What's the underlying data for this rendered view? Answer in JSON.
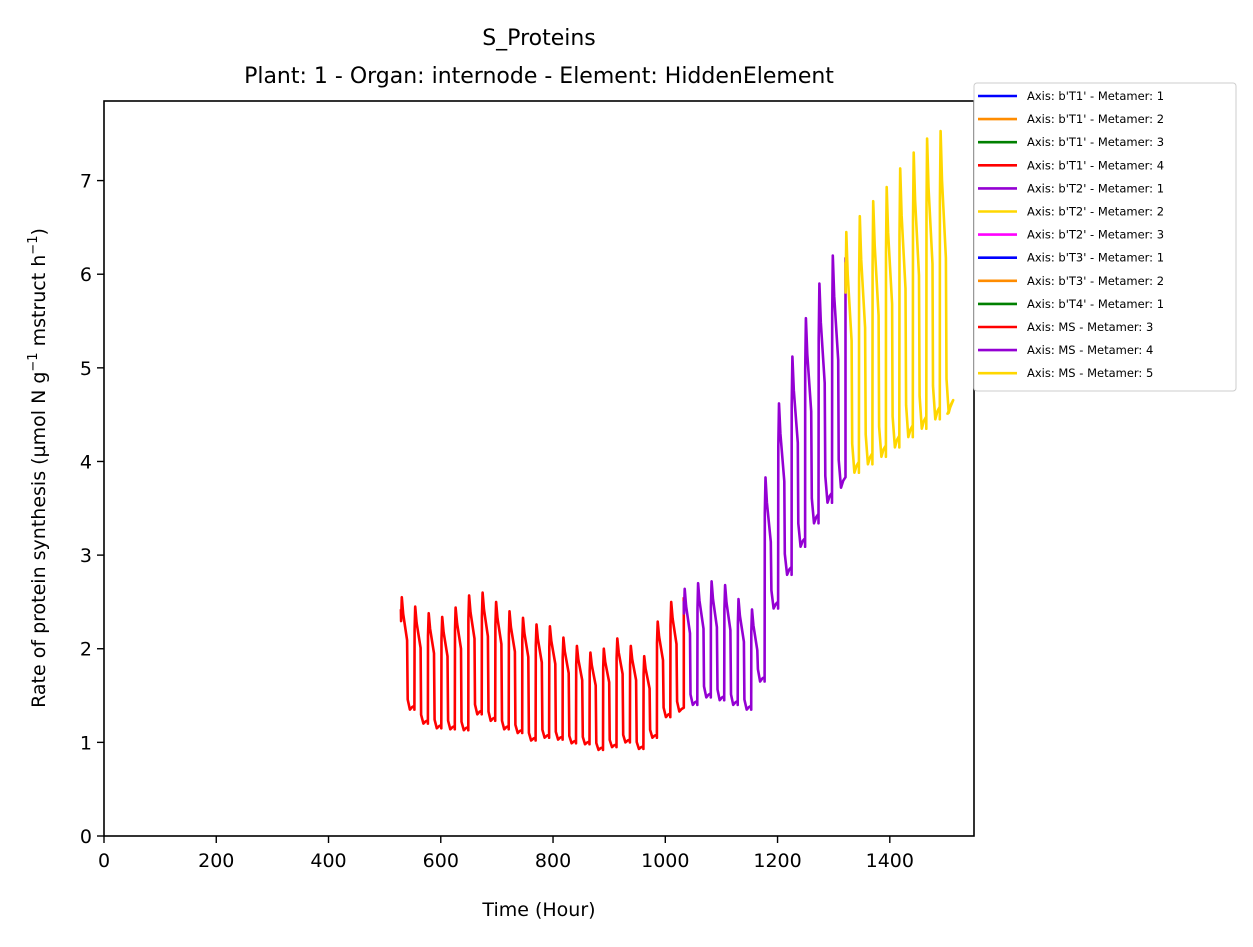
{
  "chart_data": {
    "type": "line",
    "title": "S_Proteins",
    "subtitle": "Plant: 1 - Organ: internode - Element: HiddenElement",
    "xlabel": "Time (Hour)",
    "ylabel_main": "Rate of protein synthesis (µmol N g",
    "ylabel_sup1": "−1",
    "ylabel_mid": " mstruct h",
    "ylabel_sup2": "−1",
    "ylabel_end": ")",
    "xlim": [
      0,
      1550
    ],
    "ylim": [
      0,
      7.85
    ],
    "xticks": [
      0,
      200,
      400,
      600,
      800,
      1000,
      1200,
      1400
    ],
    "yticks": [
      0,
      1,
      2,
      3,
      4,
      5,
      6,
      7
    ],
    "grid": false,
    "legend_position": "outside-top-right",
    "legend": [
      {
        "label": "Axis: b'T1' - Metamer: 1",
        "color": "#0000ff"
      },
      {
        "label": "Axis: b'T1' - Metamer: 2",
        "color": "#ff8c00"
      },
      {
        "label": "Axis: b'T1' - Metamer: 3",
        "color": "#008000"
      },
      {
        "label": "Axis: b'T1' - Metamer: 4",
        "color": "#ff0000"
      },
      {
        "label": "Axis: b'T2' - Metamer: 1",
        "color": "#9400d3"
      },
      {
        "label": "Axis: b'T2' - Metamer: 2",
        "color": "#ffd700"
      },
      {
        "label": "Axis: b'T2' - Metamer: 3",
        "color": "#ff00ff"
      },
      {
        "label": "Axis: b'T3' - Metamer: 1",
        "color": "#0000ff"
      },
      {
        "label": "Axis: b'T3' - Metamer: 2",
        "color": "#ff8c00"
      },
      {
        "label": "Axis: b'T4' - Metamer: 1",
        "color": "#008000"
      },
      {
        "label": "Axis: MS - Metamer: 3",
        "color": "#ff0000"
      },
      {
        "label": "Axis: MS - Metamer: 4",
        "color": "#9400d3"
      },
      {
        "label": "Axis: MS - Metamer: 5",
        "color": "#ffd700"
      }
    ],
    "series": [
      {
        "name": "Axis: MS - Metamer: 3",
        "color": "#ff0000",
        "cycles": [
          {
            "start": 529,
            "peak": 2.55,
            "trough": 1.35
          },
          {
            "start": 553,
            "peak": 2.45,
            "trough": 1.2
          },
          {
            "start": 577,
            "peak": 2.38,
            "trough": 1.15
          },
          {
            "start": 601,
            "peak": 2.34,
            "trough": 1.14
          },
          {
            "start": 625,
            "peak": 2.44,
            "trough": 1.13
          },
          {
            "start": 649,
            "peak": 2.57,
            "trough": 1.3
          },
          {
            "start": 673,
            "peak": 2.6,
            "trough": 1.23
          },
          {
            "start": 697,
            "peak": 2.5,
            "trough": 1.14
          },
          {
            "start": 721,
            "peak": 2.4,
            "trough": 1.1
          },
          {
            "start": 745,
            "peak": 2.33,
            "trough": 1.02
          },
          {
            "start": 769,
            "peak": 2.26,
            "trough": 1.05
          },
          {
            "start": 793,
            "peak": 2.24,
            "trough": 1.03
          },
          {
            "start": 817,
            "peak": 2.12,
            "trough": 0.99
          },
          {
            "start": 841,
            "peak": 2.03,
            "trough": 0.98
          },
          {
            "start": 865,
            "peak": 1.96,
            "trough": 0.92
          },
          {
            "start": 889,
            "peak": 2.0,
            "trough": 0.95
          },
          {
            "start": 913,
            "peak": 2.11,
            "trough": 1.0
          },
          {
            "start": 937,
            "peak": 2.03,
            "trough": 0.93
          },
          {
            "start": 961,
            "peak": 1.92,
            "trough": 1.05
          },
          {
            "start": 985,
            "peak": 2.29,
            "trough": 1.27
          },
          {
            "start": 1009,
            "peak": 2.5,
            "trough": 1.33
          }
        ],
        "end": [
          1033,
          2.55
        ]
      },
      {
        "name": "Axis: MS - Metamer: 4",
        "color": "#9400d3",
        "cycles": [
          {
            "start": 1033,
            "peak": 2.64,
            "trough": 1.4
          },
          {
            "start": 1057,
            "peak": 2.7,
            "trough": 1.48
          },
          {
            "start": 1081,
            "peak": 2.72,
            "trough": 1.45
          },
          {
            "start": 1105,
            "peak": 2.68,
            "trough": 1.4
          },
          {
            "start": 1129,
            "peak": 2.53,
            "trough": 1.35
          },
          {
            "start": 1153,
            "peak": 2.42,
            "trough": 1.65
          },
          {
            "start": 1177,
            "peak": 3.83,
            "trough": 2.43
          },
          {
            "start": 1201,
            "peak": 4.62,
            "trough": 2.79
          },
          {
            "start": 1225,
            "peak": 5.12,
            "trough": 3.09
          },
          {
            "start": 1249,
            "peak": 5.53,
            "trough": 3.34
          },
          {
            "start": 1273,
            "peak": 5.9,
            "trough": 3.56
          },
          {
            "start": 1297,
            "peak": 6.2,
            "trough": 3.72
          }
        ],
        "end": [
          1321,
          6.18
        ]
      },
      {
        "name": "Axis: MS - Metamer: 5",
        "color": "#ffd700",
        "cycles": [
          {
            "start": 1321,
            "peak": 6.45,
            "trough": 3.88
          },
          {
            "start": 1345,
            "peak": 6.62,
            "trough": 3.97
          },
          {
            "start": 1369,
            "peak": 6.78,
            "trough": 4.05
          },
          {
            "start": 1393,
            "peak": 6.93,
            "trough": 4.15
          },
          {
            "start": 1417,
            "peak": 7.13,
            "trough": 4.26
          },
          {
            "start": 1441,
            "peak": 7.3,
            "trough": 4.35
          },
          {
            "start": 1465,
            "peak": 7.45,
            "trough": 4.45
          },
          {
            "start": 1489,
            "peak": 7.53,
            "trough": 4.52
          }
        ],
        "end": [
          1502,
          4.5
        ]
      }
    ]
  }
}
